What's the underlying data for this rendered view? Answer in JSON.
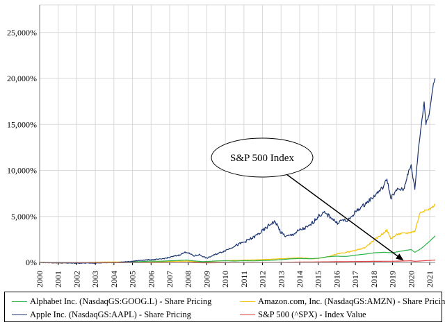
{
  "chart_data": {
    "type": "line",
    "title": "",
    "xlabel": "",
    "ylabel": "",
    "ylim": [
      0,
      28000
    ],
    "xlim": [
      2000,
      2021.3
    ],
    "y_ticks": [
      0,
      5000,
      10000,
      15000,
      20000,
      25000
    ],
    "y_tick_labels": [
      "0%",
      "5,000%",
      "10,000%",
      "15,000%",
      "20,000%",
      "25,000%"
    ],
    "x_tick_labels": [
      "2000",
      "2001",
      "2002",
      "2003",
      "2004",
      "2005",
      "2006",
      "2007",
      "2008",
      "2009",
      "2010",
      "2011",
      "2012",
      "2013",
      "2014",
      "2015",
      "2016",
      "2017",
      "2018",
      "2019",
      "2020",
      "2021"
    ],
    "grid": true,
    "annotation": {
      "text": "S&P 500 Index",
      "points_to": [
        2019.6,
        200
      ]
    },
    "series": [
      {
        "name": "Alphabet Inc. (NasdaqGS:GOOG.L) - Share Pricing",
        "color": "#2db34a",
        "x": [
          2004.6,
          2005,
          2005.5,
          2006,
          2006.5,
          2007,
          2007.5,
          2007.9,
          2008.3,
          2008.8,
          2009,
          2009.5,
          2010,
          2010.5,
          2011,
          2011.5,
          2012,
          2012.5,
          2013,
          2013.5,
          2014,
          2014.5,
          2015,
          2015.5,
          2016,
          2016.5,
          2017,
          2017.5,
          2018,
          2018.5,
          2019,
          2019.5,
          2020,
          2020.2,
          2020.5,
          2021,
          2021.3
        ],
        "values": [
          0,
          50,
          100,
          150,
          130,
          180,
          220,
          260,
          170,
          90,
          110,
          160,
          180,
          150,
          190,
          170,
          210,
          240,
          300,
          390,
          430,
          400,
          450,
          620,
          680,
          650,
          800,
          900,
          1050,
          1100,
          1050,
          1250,
          1400,
          1100,
          1450,
          2300,
          2900
        ]
      },
      {
        "name": "Amazon.com, Inc. (NasdaqGS:AMZN) - Share Pricing",
        "color": "#f2c10a",
        "x": [
          2000,
          2001,
          2002,
          2003,
          2004,
          2005,
          2006,
          2007,
          2007.9,
          2008.8,
          2009.5,
          2010,
          2011,
          2012,
          2013,
          2014,
          2014.8,
          2015.5,
          2016,
          2016.5,
          2017,
          2017.5,
          2018,
          2018.7,
          2018.9,
          2019.3,
          2019.8,
          2020.2,
          2020.5,
          2020.7,
          2021,
          2021.3
        ],
        "values": [
          0,
          -60,
          -50,
          30,
          50,
          40,
          40,
          100,
          150,
          50,
          150,
          200,
          250,
          300,
          400,
          500,
          400,
          600,
          900,
          1100,
          1300,
          1600,
          2400,
          3500,
          2600,
          3100,
          3200,
          3400,
          5500,
          5600,
          5800,
          6300
        ]
      },
      {
        "name": "Apple Inc. (NasdaqGS:AAPL) - Share Pricing",
        "color": "#1c3570",
        "x": [
          2000,
          2001,
          2002,
          2003,
          2004,
          2004.5,
          2005,
          2005.5,
          2006,
          2006.5,
          2007,
          2007.5,
          2007.9,
          2008.3,
          2008.6,
          2009,
          2009.5,
          2010,
          2010.5,
          2011,
          2011.5,
          2012,
          2012.5,
          2012.7,
          2013,
          2013.3,
          2013.6,
          2014,
          2014.5,
          2015,
          2015.3,
          2015.7,
          2016,
          2016.3,
          2016.6,
          2017,
          2017.5,
          2018,
          2018.5,
          2018.7,
          2018.9,
          2019.3,
          2019.6,
          2019.8,
          2020,
          2020.2,
          2020.4,
          2020.7,
          2020.8,
          2021,
          2021.2,
          2021.3
        ],
        "values": [
          0,
          -50,
          -80,
          -60,
          -20,
          50,
          120,
          250,
          300,
          350,
          550,
          800,
          1150,
          700,
          850,
          450,
          900,
          1300,
          1800,
          2200,
          2700,
          3400,
          4300,
          4400,
          3200,
          2800,
          3000,
          3500,
          3900,
          5000,
          5400,
          4900,
          4300,
          4600,
          4500,
          5500,
          6300,
          7200,
          8200,
          9100,
          7000,
          8000,
          7900,
          9500,
          10500,
          8000,
          12500,
          17500,
          15000,
          16500,
          19500,
          20000
        ]
      },
      {
        "name": "S&P 500 (^SPX) - Index Value",
        "color": "#e04040",
        "x": [
          2000,
          2002,
          2003,
          2007,
          2009,
          2013,
          2016,
          2018,
          2019,
          2020,
          2020.2,
          2021.3
        ],
        "values": [
          0,
          -20,
          -30,
          0,
          -40,
          20,
          80,
          120,
          130,
          180,
          120,
          260
        ]
      }
    ]
  },
  "legend": {
    "google": "Alphabet Inc. (NasdaqGS:GOOG.L) - Share Pricing",
    "amazon": "Amazon.com, Inc. (NasdaqGS:AMZN) - Share Pricing",
    "apple": "Apple Inc. (NasdaqGS:AAPL) - Share Pricing",
    "spx": "S&P 500 (^SPX) - Index Value"
  }
}
